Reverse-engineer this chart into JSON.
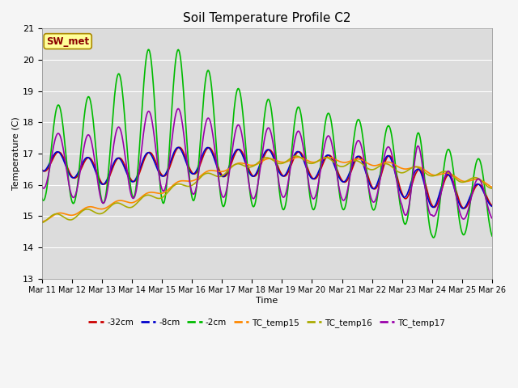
{
  "title": "Soil Temperature Profile C2",
  "xlabel": "Time",
  "ylabel": "Temperature (C)",
  "ylim": [
    13.0,
    21.0
  ],
  "yticks": [
    13.0,
    14.0,
    15.0,
    16.0,
    17.0,
    18.0,
    19.0,
    20.0,
    21.0
  ],
  "xtick_labels": [
    "Mar 11",
    "Mar 12",
    "Mar 13",
    "Mar 14",
    "Mar 15",
    "Mar 16",
    "Mar 17",
    "Mar 18",
    "Mar 19",
    "Mar 20",
    "Mar 21",
    "Mar 22",
    "Mar 23",
    "Mar 24",
    "Mar 25",
    "Mar 26"
  ],
  "annotation_text": "SW_met",
  "annotation_color": "#8B0000",
  "annotation_bg": "#FFFF99",
  "plot_bg": "#DCDCDC",
  "fig_bg": "#F5F5F5",
  "series": {
    "neg32cm": {
      "label": "-32cm",
      "color": "#CC0000",
      "linewidth": 1.2
    },
    "neg8cm": {
      "label": "-8cm",
      "color": "#0000CC",
      "linewidth": 1.2
    },
    "neg2cm": {
      "label": "-2cm",
      "color": "#00BB00",
      "linewidth": 1.2
    },
    "TC_temp15": {
      "label": "TC_temp15",
      "color": "#FF8800",
      "linewidth": 1.2
    },
    "TC_temp16": {
      "label": "TC_temp16",
      "color": "#AAAA00",
      "linewidth": 1.2
    },
    "TC_temp17": {
      "label": "TC_temp17",
      "color": "#9900AA",
      "linewidth": 1.2
    }
  },
  "grid_color": "#FFFFFF",
  "grid_linewidth": 0.8
}
